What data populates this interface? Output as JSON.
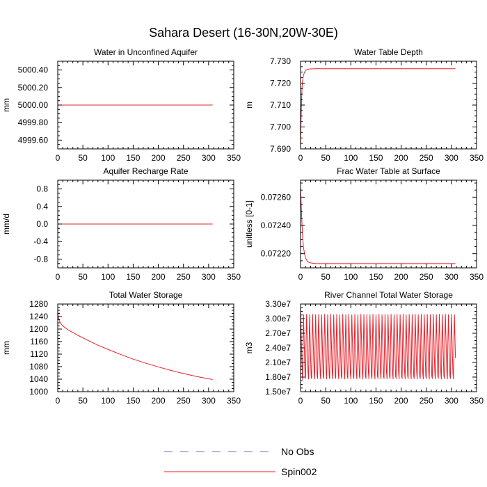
{
  "title": "Sahara Desert (16-30N,20W-30E)",
  "legend": {
    "placement": "bottom-center",
    "entries": [
      {
        "label": "No Obs",
        "color": "#6b6bc8",
        "style": "dashed"
      },
      {
        "label": "Spin002",
        "color": "#e8202a",
        "style": "solid"
      }
    ]
  },
  "chart_data": [
    {
      "type": "line",
      "title": "Water in Unconfined Aquifer",
      "ylabel": "mm",
      "xlabel": "",
      "xlim": [
        0,
        350
      ],
      "ylim": [
        4999.5,
        5000.5
      ],
      "xticks": [
        0,
        50,
        100,
        150,
        200,
        250,
        300,
        350
      ],
      "yticks": [
        4999.6,
        4999.8,
        5000.0,
        5000.2,
        5000.4
      ],
      "ytick_labels": [
        "4999.60",
        "4999.80",
        "5000.00",
        "5000.20",
        "5000.40"
      ],
      "grid": false,
      "series": [
        {
          "name": "Spin002",
          "color": "#e8202a",
          "x": [
            1,
            50,
            100,
            150,
            200,
            250,
            308
          ],
          "y": [
            5000.0,
            5000.0,
            5000.0,
            5000.0,
            5000.0,
            5000.0,
            5000.0
          ]
        }
      ]
    },
    {
      "type": "line",
      "title": "Water Table Depth",
      "ylabel": "m",
      "xlabel": "",
      "xlim": [
        0,
        350
      ],
      "ylim": [
        7.69,
        7.73
      ],
      "xticks": [
        0,
        50,
        100,
        150,
        200,
        250,
        300,
        350
      ],
      "yticks": [
        7.69,
        7.7,
        7.71,
        7.72,
        7.73
      ],
      "ytick_labels": [
        "7.690",
        "7.700",
        "7.710",
        "7.720",
        "7.730"
      ],
      "grid": false,
      "series": [
        {
          "name": "Spin002",
          "color": "#e8202a",
          "x": [
            0,
            1,
            2,
            3,
            4,
            6,
            8,
            10,
            13,
            16,
            20,
            30,
            50,
            100,
            200,
            308
          ],
          "y": [
            7.69,
            7.703,
            7.712,
            7.718,
            7.721,
            7.7238,
            7.725,
            7.7258,
            7.7262,
            7.7264,
            7.7265,
            7.7266,
            7.7266,
            7.7266,
            7.7266,
            7.7266
          ]
        }
      ]
    },
    {
      "type": "line",
      "title": "Aquifer Recharge Rate",
      "ylabel": "mm/d",
      "xlabel": "",
      "xlim": [
        0,
        350
      ],
      "ylim": [
        -1.0,
        1.0
      ],
      "xticks": [
        0,
        50,
        100,
        150,
        200,
        250,
        300,
        350
      ],
      "yticks": [
        -0.8,
        -0.4,
        0.0,
        0.4,
        0.8
      ],
      "ytick_labels": [
        "-0.8",
        "-0.4",
        "0.0",
        "0.4",
        "0.8"
      ],
      "grid": false,
      "series": [
        {
          "name": "Spin002",
          "color": "#e8202a",
          "x": [
            1,
            100,
            200,
            308
          ],
          "y": [
            0.0,
            0.0,
            0.0,
            0.0
          ]
        }
      ]
    },
    {
      "type": "line",
      "title": "Frac Water Table at Surface",
      "ylabel": "unitless [0-1]",
      "xlabel": "",
      "xlim": [
        0,
        350
      ],
      "ylim": [
        0.0721,
        0.07272
      ],
      "xticks": [
        0,
        50,
        100,
        150,
        200,
        250,
        300,
        350
      ],
      "yticks": [
        0.0722,
        0.0724,
        0.0726
      ],
      "ytick_labels": [
        "0.07220",
        "0.07240",
        "0.07260"
      ],
      "grid": false,
      "series": [
        {
          "name": "Spin002",
          "color": "#e8202a",
          "x": [
            0,
            1,
            2,
            3,
            4,
            5,
            6,
            8,
            10,
            13,
            16,
            20,
            30,
            50,
            100,
            200,
            308
          ],
          "y": [
            0.07268,
            0.07258,
            0.07248,
            0.0724,
            0.07233,
            0.07228,
            0.07224,
            0.0722,
            0.07217,
            0.07215,
            0.07214,
            0.072135,
            0.07213,
            0.07213,
            0.07213,
            0.07213,
            0.07213
          ]
        }
      ]
    },
    {
      "type": "line",
      "title": "Total Water Storage",
      "ylabel": "mm",
      "xlabel": "",
      "xlim": [
        0,
        350
      ],
      "ylim": [
        1000,
        1280
      ],
      "xticks": [
        0,
        50,
        100,
        150,
        200,
        250,
        300,
        350
      ],
      "yticks": [
        1000,
        1040,
        1080,
        1120,
        1160,
        1200,
        1240,
        1280
      ],
      "ytick_labels": [
        "1000",
        "1040",
        "1080",
        "1120",
        "1160",
        "1200",
        "1240",
        "1280"
      ],
      "grid": false,
      "series": [
        {
          "name": "Spin002",
          "color": "#e8202a",
          "x": [
            0,
            1,
            2,
            4,
            7,
            10,
            15,
            20,
            30,
            40,
            50,
            75,
            100,
            125,
            150,
            175,
            200,
            225,
            250,
            275,
            300,
            308
          ],
          "y": [
            1262,
            1240,
            1232,
            1224,
            1216,
            1210,
            1204,
            1198,
            1189,
            1180,
            1172,
            1152,
            1135,
            1119,
            1104,
            1091,
            1079,
            1068,
            1058,
            1049,
            1041,
            1039
          ]
        }
      ]
    },
    {
      "type": "line",
      "title": "River Channel Total Water Storage",
      "ylabel": "m3",
      "xlabel": "",
      "xlim": [
        0,
        350
      ],
      "ylim": [
        15000000,
        33000000
      ],
      "xticks": [
        0,
        50,
        100,
        150,
        200,
        250,
        300,
        350
      ],
      "yticks": [
        15000000,
        18000000,
        21000000,
        24000000,
        27000000,
        30000000,
        33000000
      ],
      "ytick_labels": [
        "1.50e7",
        "1.80e7",
        "2.10e7",
        "2.40e7",
        "2.70e7",
        "3.00e7",
        "3.30e7"
      ],
      "grid": false,
      "series": [
        {
          "name": "Spin002",
          "color": "#e8202a",
          "x": [
            0,
            1,
            2,
            3,
            4,
            5,
            6,
            7,
            8,
            9,
            10,
            11,
            12,
            13,
            14,
            15,
            16,
            17,
            18,
            19,
            20,
            21,
            22,
            23,
            24,
            25,
            26,
            27,
            28,
            29,
            30,
            31,
            32,
            33,
            34,
            35,
            36,
            37,
            38,
            39,
            40,
            41,
            42,
            43,
            44,
            45,
            46,
            47,
            48,
            49,
            50,
            51,
            52,
            53,
            54,
            55,
            56,
            57,
            58,
            59,
            60,
            61,
            62,
            63,
            64,
            65,
            66,
            67,
            68,
            69,
            70,
            71,
            72,
            73,
            74,
            75,
            76,
            77,
            78,
            79,
            80,
            81,
            82,
            83,
            84,
            85,
            86,
            87,
            88,
            89,
            90,
            91,
            92,
            93,
            94,
            95,
            96,
            97,
            98,
            99,
            100,
            101,
            102,
            103,
            104,
            105,
            106,
            107,
            108,
            109,
            110,
            111,
            112,
            113,
            114,
            115,
            116,
            117,
            118,
            119,
            120,
            121,
            122,
            123,
            124,
            125,
            126,
            127,
            128,
            129,
            130,
            131,
            132,
            133,
            134,
            135,
            136,
            137,
            138,
            139,
            140,
            141,
            142,
            143,
            144,
            145,
            146,
            147,
            148,
            149,
            150,
            151,
            152,
            153,
            154,
            155,
            156,
            157,
            158,
            159,
            160,
            161,
            162,
            163,
            164,
            165,
            166,
            167,
            168,
            169,
            170,
            171,
            172,
            173,
            174,
            175,
            176,
            177,
            178,
            179,
            180,
            181,
            182,
            183,
            184,
            185,
            186,
            187,
            188,
            189,
            190,
            191,
            192,
            193,
            194,
            195,
            196,
            197,
            198,
            199,
            200,
            201,
            202,
            203,
            204,
            205,
            206,
            207,
            208,
            209,
            210,
            211,
            212,
            213,
            214,
            215,
            216,
            217,
            218,
            219,
            220,
            221,
            222,
            223,
            224,
            225,
            226,
            227,
            228,
            229,
            230,
            231,
            232,
            233,
            234,
            235,
            236,
            237,
            238,
            239,
            240,
            241,
            242,
            243,
            244,
            245,
            246,
            247,
            248,
            249,
            250,
            251,
            252,
            253,
            254,
            255,
            256,
            257,
            258,
            259,
            260,
            261,
            262,
            263,
            264,
            265,
            266,
            267,
            268,
            269,
            270,
            271,
            272,
            273,
            274,
            275,
            276,
            277,
            278,
            279,
            280,
            281,
            282,
            283,
            284,
            285,
            286,
            287,
            288,
            289,
            290,
            291,
            292,
            293,
            294,
            295,
            296,
            297,
            298,
            299,
            300,
            301,
            302,
            303,
            304,
            305,
            306,
            307,
            308
          ],
          "y": [
            32500000,
            27800000,
            23800000,
            19900000,
            17500000,
            25000000,
            30800000,
            26100000,
            21900000,
            18200000,
            17700000,
            25500000,
            30900000,
            26500000,
            22400000,
            18800000,
            17600000,
            25300000,
            30800000,
            26100000,
            21900000,
            18200000,
            17700000,
            25500000,
            30900000,
            26500000,
            22400000,
            18800000,
            17600000,
            25300000,
            30800000,
            26100000,
            21900000,
            18200000,
            17700000,
            25500000,
            30900000,
            26500000,
            22400000,
            18800000,
            17600000,
            25300000,
            30800000,
            26100000,
            21900000,
            18200000,
            17700000,
            25500000,
            30900000,
            26500000,
            22400000,
            18800000,
            17600000,
            25300000,
            30800000,
            26100000,
            21900000,
            18200000,
            17700000,
            25500000,
            30900000,
            26500000,
            22400000,
            18800000,
            17600000,
            25300000,
            30800000,
            26100000,
            21900000,
            18200000,
            17700000,
            25500000,
            30900000,
            26500000,
            22400000,
            18800000,
            17600000,
            25300000,
            30800000,
            26100000,
            21900000,
            18200000,
            17700000,
            25500000,
            30900000,
            26500000,
            22400000,
            18800000,
            17600000,
            25300000,
            30800000,
            26100000,
            21900000,
            18200000,
            17700000,
            25500000,
            30900000,
            26500000,
            22400000,
            18800000,
            17600000,
            25300000,
            30800000,
            26100000,
            21900000,
            18200000,
            17700000,
            25500000,
            30900000,
            26500000,
            22400000,
            18800000,
            17600000,
            25300000,
            30800000,
            26100000,
            21900000,
            18200000,
            17700000,
            25500000,
            30900000,
            26500000,
            22400000,
            18800000,
            17600000,
            25300000,
            30800000,
            26100000,
            21900000,
            18200000,
            17700000,
            25500000,
            30900000,
            26500000,
            22400000,
            18800000,
            17600000,
            25300000,
            30800000,
            26100000,
            21900000,
            18200000,
            17700000,
            25500000,
            30900000,
            26500000,
            22400000,
            18800000,
            17600000,
            25300000,
            30800000,
            26100000,
            21900000,
            18200000,
            17700000,
            25500000,
            30900000,
            26500000,
            22400000,
            18800000,
            17600000,
            25300000,
            30800000,
            26100000,
            21900000,
            18200000,
            17700000,
            25500000,
            30900000,
            26500000,
            22400000,
            18800000,
            17600000,
            25300000,
            30800000,
            26100000,
            21900000,
            18200000,
            17700000,
            25500000,
            30900000,
            26500000,
            22400000,
            18800000,
            17600000,
            25300000,
            30800000,
            26100000,
            21900000,
            18200000,
            17700000,
            25500000,
            30900000,
            26500000,
            22400000,
            18800000,
            17600000,
            25300000,
            30800000,
            26100000,
            21900000,
            18200000,
            17700000,
            25500000,
            30900000,
            26500000,
            22400000,
            18800000,
            17600000,
            25300000,
            30800000,
            26100000,
            21900000,
            18200000,
            17700000,
            25500000,
            30900000,
            26500000,
            22400000,
            18800000,
            17600000,
            25300000,
            30800000,
            26100000,
            21900000,
            18200000,
            17700000,
            25500000,
            30900000,
            26500000,
            22400000,
            18800000,
            17600000,
            25300000,
            30800000,
            26100000,
            21900000,
            18200000,
            17700000,
            25500000,
            30900000,
            26500000,
            22400000,
            18800000,
            17600000,
            25300000,
            30800000,
            26100000,
            21900000,
            18200000,
            17700000,
            25500000,
            30900000,
            26500000,
            22400000,
            18800000,
            17600000,
            25300000,
            30800000,
            26100000,
            21900000,
            18200000,
            17700000,
            25500000,
            30900000,
            26500000,
            22400000,
            18800000,
            17600000,
            25300000,
            30800000,
            26100000,
            21900000,
            18200000,
            17700000,
            25500000,
            30900000,
            26500000,
            22400000,
            18800000,
            17600000,
            25300000,
            30800000,
            26100000,
            21900000,
            18200000,
            17700000,
            25500000,
            30900000,
            26500000,
            22400000,
            18800000,
            17600000,
            25300000,
            30800000,
            26100000,
            21900000,
            18200000,
            17700000,
            25500000,
            30900000,
            26500000,
            22400000,
            18800000,
            17600000,
            25300000,
            30800000,
            26100000,
            21900000
          ]
        }
      ]
    }
  ]
}
